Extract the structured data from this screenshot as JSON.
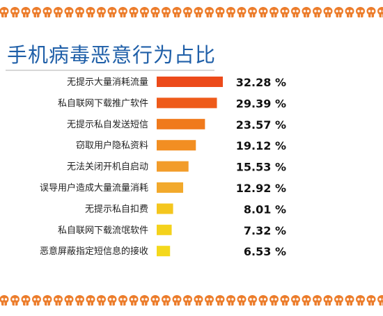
{
  "title": "手机病毒恶意行为占比",
  "colors": {
    "title": "#1f5fa8",
    "skull": "#ec7d2c",
    "bars": [
      "#ec4a1a",
      "#ee5a1a",
      "#f07a1c",
      "#f28e22",
      "#f29c2a",
      "#f2a92c",
      "#f4c61e",
      "#f4d21c",
      "#f4d81c"
    ]
  },
  "chart_data": {
    "type": "bar",
    "orientation": "horizontal",
    "categories": [
      "无提示大量消耗流量",
      "私自联网下载推广软件",
      "无提示私自发送短信",
      "窃取用户隐私资料",
      "无法关闭开机自启动",
      "误导用户造成大量流量消耗",
      "无提示私自扣费",
      "私自联网下载流氓软件",
      "恶意屏蔽指定短信息的接收"
    ],
    "values": [
      32.28,
      29.39,
      23.57,
      19.12,
      15.53,
      12.92,
      8.01,
      7.32,
      6.53
    ],
    "value_labels": [
      "32.28 %",
      "29.39 %",
      "23.57 %",
      "19.12 %",
      "15.53 %",
      "12.92 %",
      "8.01 %",
      "7.32 %",
      "6.53 %"
    ],
    "xlim": [
      0,
      100
    ],
    "grid": false,
    "legend": "none"
  }
}
